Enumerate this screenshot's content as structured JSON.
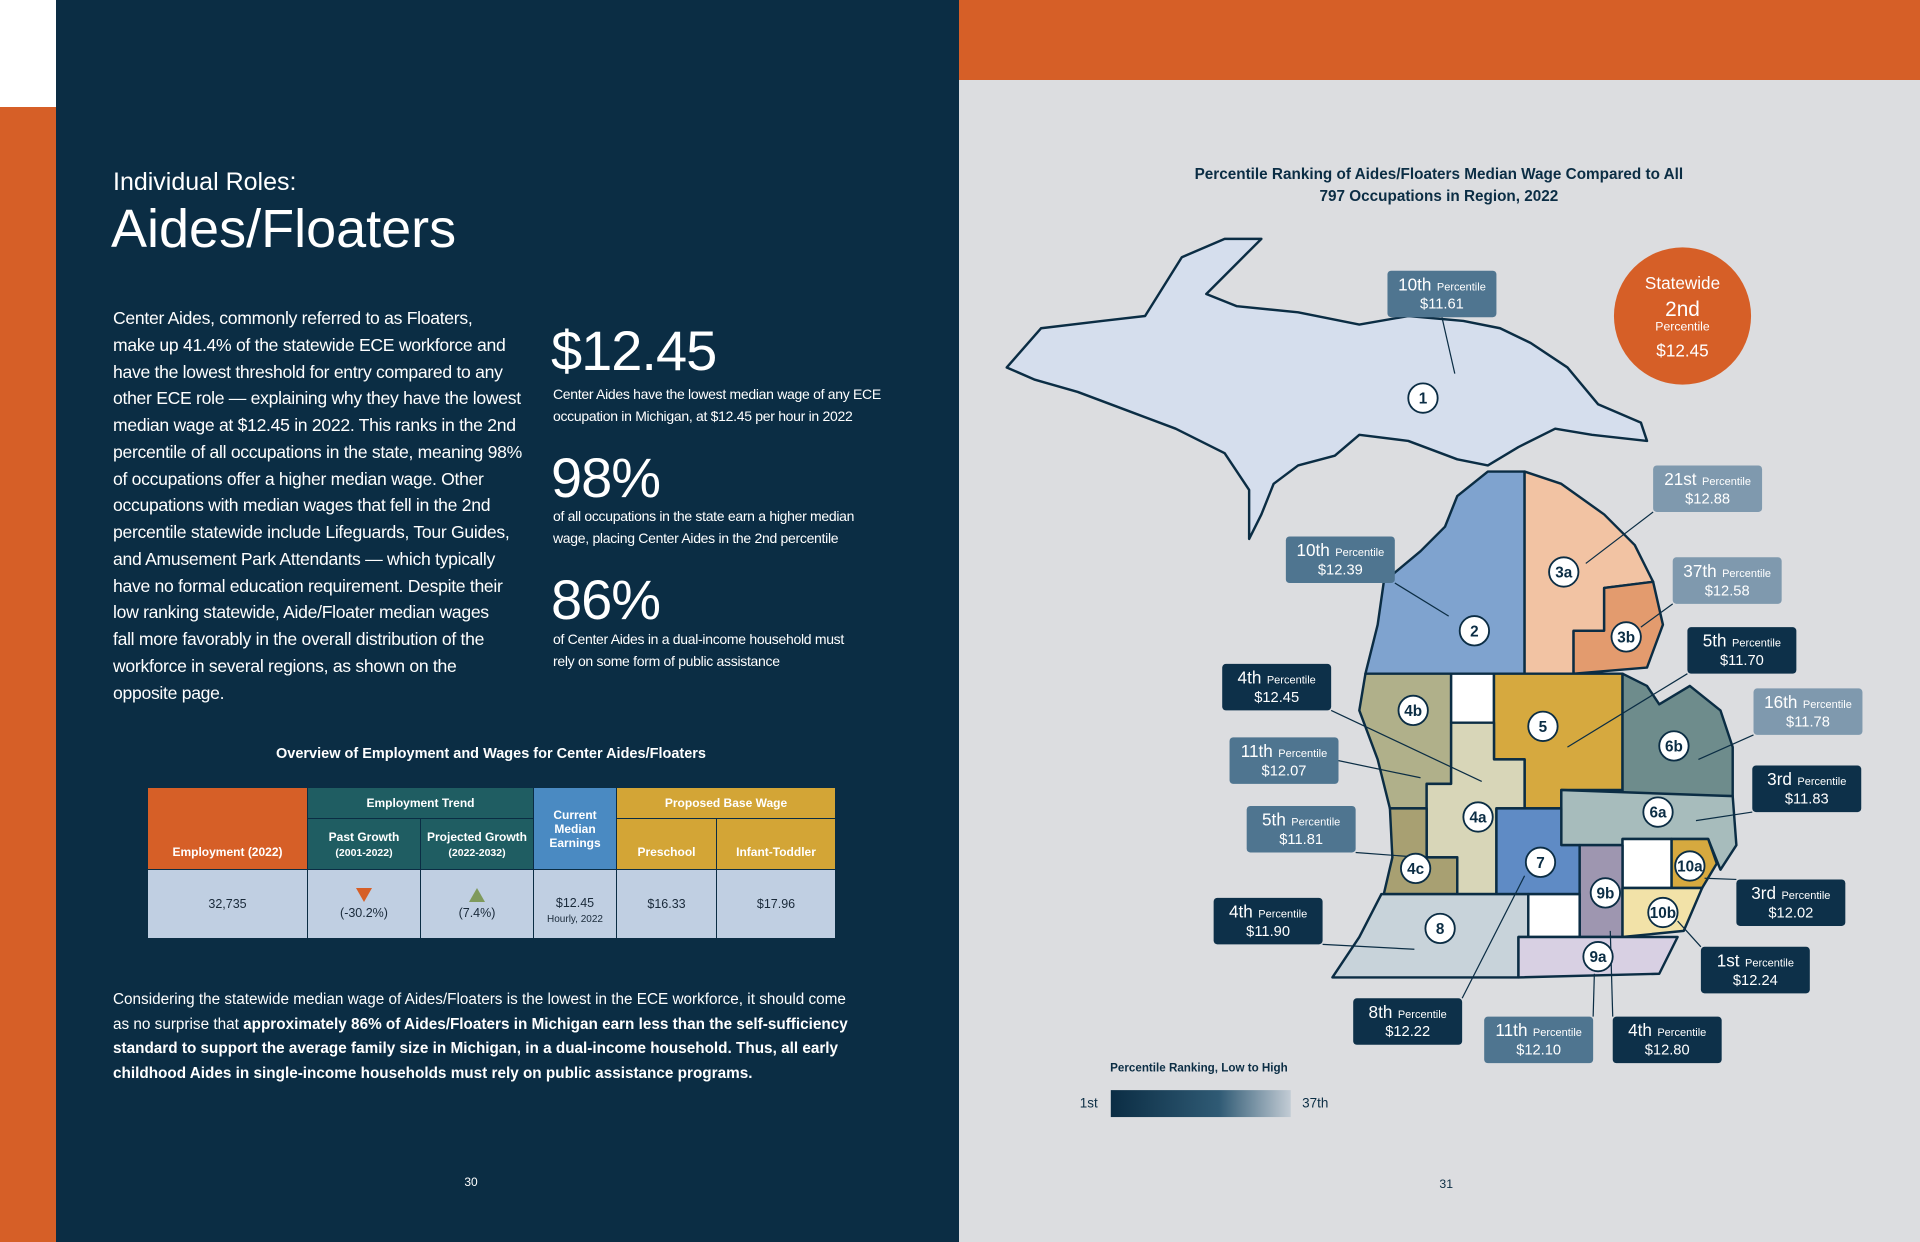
{
  "left_page": {
    "heading": {
      "kicker": "Individual Roles:",
      "title": "Aides/Floaters"
    },
    "body_lines": [
      "Center Aides, commonly referred to as Floaters,",
      "make up 41.4% of the statewide ECE workforce and",
      "have the lowest threshold for entry compared to any",
      "other ECE role — explaining why they have the lowest",
      "median wage at $12.45 in 2022. This ranks in the 2nd",
      "percentile of all occupations in the state, meaning 98%",
      "of occupations offer a higher median wage. Other",
      "occupations with median wages that fell in the 2nd",
      "percentile statewide include Lifeguards, Tour Guides,",
      "and Amusement Park Attendants — which typically",
      "have no formal education requirement. Despite their",
      "low ranking statewide, Aide/Floater median wages",
      "fall more favorably in the overall distribution of the",
      "workforce in several regions, as shown on the",
      "opposite page."
    ],
    "stats": [
      {
        "value": "$12.45",
        "lines": [
          "Center Aides have the lowest median wage of any ECE",
          "occupation in Michigan, at $12.45 per hour in 2022"
        ]
      },
      {
        "value": "98%",
        "lines": [
          "of all occupations in the state earn a higher median",
          "wage, placing Center Aides in the 2nd percentile"
        ]
      },
      {
        "value": "86%",
        "lines": [
          "of Center Aides in a dual-income household must",
          "rely on some form of public assistance"
        ]
      }
    ],
    "table": {
      "title": "Overview of Employment and Wages for Center Aides/Floaters",
      "group_headers": [
        "Employment Trend",
        "Proposed Base Wage"
      ],
      "headers": [
        "Employment (2022)",
        "Past Growth",
        "(2001-2022)",
        "Projected Growth",
        "(2022-2032)",
        "Current Median Earnings",
        "Preschool",
        "Infant-Toddler"
      ],
      "row": [
        "32,735",
        "(-30.2%)",
        "(7.4%)",
        "$12.45",
        "Hourly, 2022",
        "$16.33",
        "$17.96"
      ]
    },
    "closing": {
      "normal": "Considering the statewide median wage of Aides/Floaters is the lowest in the ECE workforce, it should come as no surprise that ",
      "bold": "approximately 86% of Aides/Floaters in Michigan earn less than the self-sufficiency standard to support the average family size in Michigan, in a dual-income household. Thus, all early childhood Aides in single-income households must rely on public assistance programs."
    },
    "page_number": "30"
  },
  "right_page": {
    "title_lines": [
      "Percentile Ranking of Aides/Floaters Median Wage Compared to All",
      "797 Occupations in Region, 2022"
    ],
    "statewide": {
      "label": "Statewide",
      "rank": "2nd",
      "sub": "Percentile",
      "wage": "$12.45"
    },
    "regions": [
      "1",
      "2",
      "3a",
      "3b",
      "4b",
      "5",
      "6b",
      "6a",
      "4a",
      "4c",
      "7",
      "10a",
      "9b",
      "10b",
      "8",
      "9a"
    ],
    "callouts": [
      {
        "rank": "10th",
        "label": "Percentile",
        "wage": "$11.61"
      },
      {
        "rank": "21st",
        "label": "Percentile",
        "wage": "$12.88"
      },
      {
        "rank": "37th",
        "label": "Percentile",
        "wage": "$12.58"
      },
      {
        "rank": "5th",
        "label": "Percentile",
        "wage": "$11.70"
      },
      {
        "rank": "16th",
        "label": "Percentile",
        "wage": "$11.78"
      },
      {
        "rank": "3rd",
        "label": "Percentile",
        "wage": "$11.83"
      },
      {
        "rank": "3rd",
        "label": "Percentile",
        "wage": "$12.02"
      },
      {
        "rank": "1st",
        "label": "Percentile",
        "wage": "$12.24"
      },
      {
        "rank": "4th",
        "label": "Percentile",
        "wage": "$12.80"
      },
      {
        "rank": "11th",
        "label": "Percentile",
        "wage": "$12.10"
      },
      {
        "rank": "8th",
        "label": "Percentile",
        "wage": "$12.22"
      },
      {
        "rank": "4th",
        "label": "Percentile",
        "wage": "$11.90"
      },
      {
        "rank": "5th",
        "label": "Percentile",
        "wage": "$11.81"
      },
      {
        "rank": "11th",
        "label": "Percentile",
        "wage": "$12.07"
      },
      {
        "rank": "4th",
        "label": "Percentile",
        "wage": "$12.45"
      },
      {
        "rank": "10th",
        "label": "Percentile",
        "wage": "$12.39"
      }
    ],
    "legend": {
      "title": "Percentile Ranking, Low to High",
      "low": "1st",
      "high": "37th"
    },
    "page_number": "31"
  }
}
